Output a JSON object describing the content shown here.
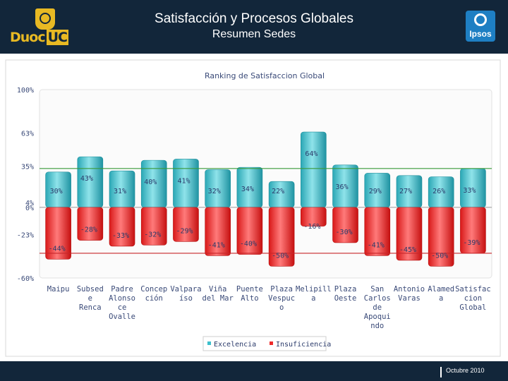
{
  "header": {
    "title": "Satisfacción y Procesos Globales",
    "subtitle": "Resumen Sedes",
    "logo_left": {
      "prefix": "Duoc",
      "suffix": "UC"
    },
    "logo_right": "Ipsos"
  },
  "footer": {
    "date": "Octubre 2010"
  },
  "colors": {
    "header_bg": "#12263a",
    "excelencia": "#3cbfcc",
    "insuficiencia": "#ee2a2a",
    "accent": "#e8b923"
  },
  "chart_data": {
    "type": "bar",
    "title": "Ranking de Satisfaccion Global",
    "ytick_labels": [
      "100%",
      "63%",
      "35%",
      "4%",
      "0%",
      "-23%",
      "-60%"
    ],
    "categories": [
      [
        "Maipu"
      ],
      [
        "Subsed",
        "e",
        "Renca"
      ],
      [
        "Padre",
        "Alonso",
        "ce",
        "Ovalle"
      ],
      [
        "Concep",
        "ción"
      ],
      [
        "Valpara",
        "íso"
      ],
      [
        "Viña",
        "del Mar"
      ],
      [
        "Puente",
        "Alto"
      ],
      [
        "Plaza",
        "Vespuc",
        "o"
      ],
      [
        "Melipill",
        "a"
      ],
      [
        "Plaza",
        "Oeste"
      ],
      [
        "San",
        "Carlos",
        "de",
        "Apoqui",
        "ndo"
      ],
      [
        "Antonio",
        "Varas"
      ],
      [
        "Alamed",
        "a"
      ],
      [
        "Satisfac",
        "cion",
        "Global"
      ]
    ],
    "series": [
      {
        "name": "Excelencia",
        "color": "#3cbfcc",
        "values": [
          30,
          43,
          31,
          40,
          41,
          32,
          34,
          22,
          64,
          36,
          29,
          27,
          26,
          33
        ],
        "labels": [
          "30%",
          "43%",
          "31%",
          "40%",
          "41%",
          "32%",
          "34%",
          "22%",
          "64%",
          "36%",
          "29%",
          "27%",
          "26%",
          "33%"
        ]
      },
      {
        "name": "Insuficiencia",
        "color": "#ee2a2a",
        "values": [
          -44,
          -28,
          -33,
          -32,
          -29,
          -41,
          -40,
          -50,
          -16,
          -30,
          -41,
          -45,
          -50,
          -39
        ],
        "labels": [
          "-44%",
          "-28%",
          "-33%",
          "-32%",
          "-29%",
          "-41%",
          "-40%",
          "-50%",
          "-16%",
          "-30%",
          "-41%",
          "-45%",
          "-50%",
          "-39%"
        ]
      }
    ],
    "ylim": [
      -60,
      100
    ],
    "reference_lines": [
      33,
      -39
    ],
    "legend_position": "bottom"
  }
}
